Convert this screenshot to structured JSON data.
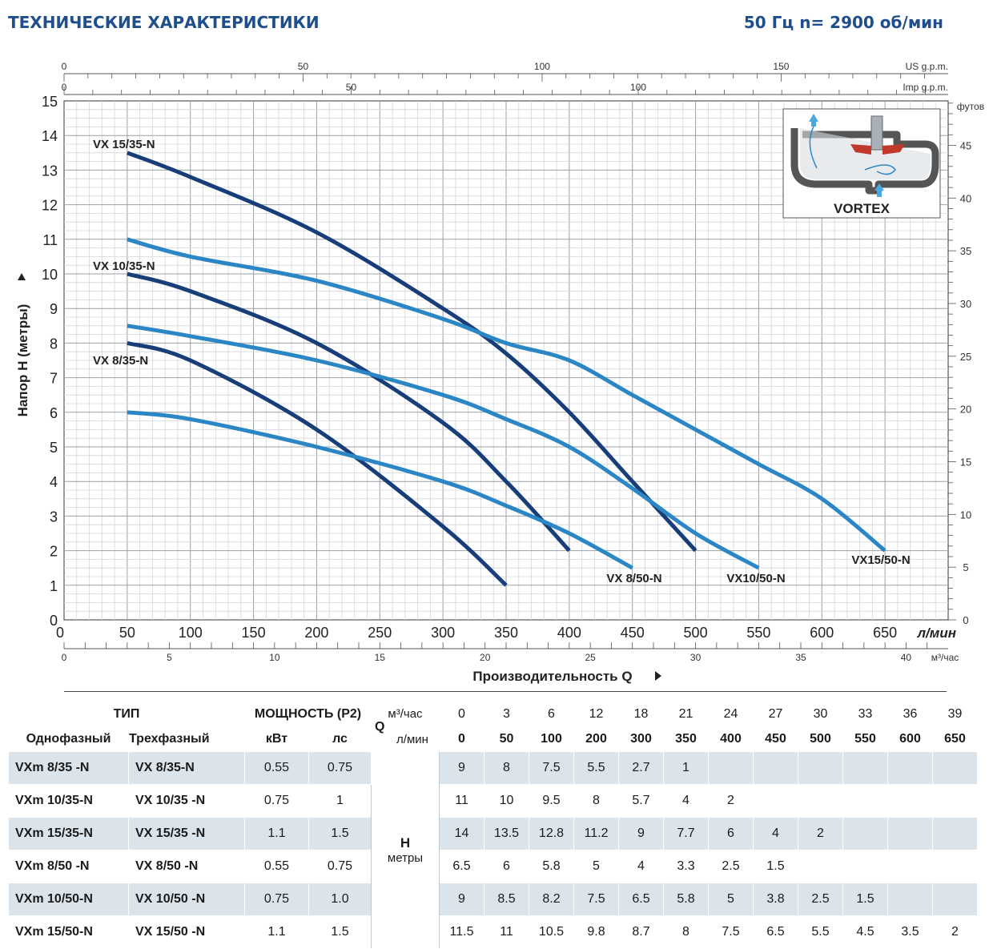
{
  "header": {
    "title": "ТЕХНИЧЕСКИЕ ХАРАКТЕРИСТИКИ",
    "subtitle": "50 Гц  n= 2900 об/мин"
  },
  "chart_data": {
    "type": "line",
    "title": "ТЕХНИЧЕСКИЕ ХАРАКТЕРИСТИКИ",
    "xlabel": "Производительность  Q",
    "ylabel": "Напор  H (метры)",
    "xlim": [
      0,
      700
    ],
    "ylim": [
      0,
      15
    ],
    "grid": true,
    "x_unit_label": "л/мин",
    "x_ticks": [
      "0",
      "50",
      "100",
      "150",
      "200",
      "250",
      "300",
      "350",
      "400",
      "450",
      "500",
      "550",
      "600",
      "650"
    ],
    "y_ticks": [
      "0",
      "1",
      "2",
      "3",
      "4",
      "5",
      "6",
      "7",
      "8",
      "9",
      "10",
      "11",
      "12",
      "13",
      "14",
      "15"
    ],
    "secondary_axes": {
      "us_gpm": {
        "label": "US g.p.m.",
        "ticks": [
          "0",
          "50",
          "100",
          "150"
        ]
      },
      "imp_gpm": {
        "label": "Imp g.p.m.",
        "ticks": [
          "0",
          "50",
          "100"
        ]
      },
      "m3h": {
        "label": "м³/час",
        "ticks": [
          "0",
          "5",
          "10",
          "15",
          "20",
          "25",
          "30",
          "35",
          "40"
        ]
      },
      "feet": {
        "label": "футов",
        "ticks": [
          "0",
          "5",
          "10",
          "15",
          "20",
          "25",
          "30",
          "35",
          "40",
          "45"
        ]
      }
    },
    "series": [
      {
        "name": "VX 15/35-N",
        "label": "VX 15/35-N",
        "color": "#173e78",
        "x": [
          50,
          100,
          200,
          300,
          350,
          400,
          450,
          500
        ],
        "y": [
          13.5,
          12.8,
          11.2,
          9,
          7.7,
          6,
          4,
          2
        ]
      },
      {
        "name": "VX 10/35-N",
        "label": "VX 10/35-N",
        "color": "#173e78",
        "x": [
          50,
          100,
          200,
          300,
          350,
          400
        ],
        "y": [
          10,
          9.5,
          8,
          5.7,
          4,
          2
        ]
      },
      {
        "name": "VX 8/35-N",
        "label": "VX 8/35-N",
        "color": "#173e78",
        "x": [
          50,
          100,
          200,
          300,
          350
        ],
        "y": [
          8,
          7.5,
          5.5,
          2.7,
          1
        ]
      },
      {
        "name": "VX15/50-N",
        "label": "VX15/50-N",
        "color": "#2b86c6",
        "x": [
          50,
          100,
          200,
          300,
          350,
          400,
          450,
          500,
          550,
          600,
          650
        ],
        "y": [
          11,
          10.5,
          9.8,
          8.7,
          8,
          7.5,
          6.5,
          5.5,
          4.5,
          3.5,
          2
        ]
      },
      {
        "name": "VX10/50-N",
        "label": "VX10/50-N",
        "color": "#2b86c6",
        "x": [
          50,
          100,
          200,
          300,
          350,
          400,
          450,
          500,
          550
        ],
        "y": [
          8.5,
          8.2,
          7.5,
          6.5,
          5.8,
          5,
          3.8,
          2.5,
          1.5
        ]
      },
      {
        "name": "VX 8/50-N",
        "label": "VX 8/50-N",
        "color": "#2b86c6",
        "x": [
          50,
          100,
          200,
          300,
          350,
          400,
          450
        ],
        "y": [
          6,
          5.8,
          5,
          4,
          3.3,
          2.5,
          1.5
        ]
      }
    ],
    "inset_label": "VORTEX"
  },
  "table": {
    "type_header": "ТИП",
    "single_phase_header": "Однофазный",
    "three_phase_header": "Трехфазный",
    "power_header": "МОЩНОСТЬ (P2)",
    "kw_header": "кВт",
    "hp_header": "лс",
    "q_label": "Q",
    "m3h_label": "м³/час",
    "lmin_label": "л/мин",
    "h_label": "H",
    "h_unit": "метры",
    "q_m3h": [
      "0",
      "3",
      "6",
      "12",
      "18",
      "21",
      "24",
      "27",
      "30",
      "33",
      "36",
      "39"
    ],
    "q_lmin": [
      "0",
      "50",
      "100",
      "200",
      "300",
      "350",
      "400",
      "450",
      "500",
      "550",
      "600",
      "650"
    ],
    "rows": [
      {
        "single": "VXm  8/35  -N",
        "three": "VX  8/35-N",
        "kw": "0.55",
        "hp": "0.75",
        "h": [
          "9",
          "8",
          "7.5",
          "5.5",
          "2.7",
          "1",
          "",
          "",
          "",
          "",
          "",
          ""
        ]
      },
      {
        "single": "VXm 10/35-N",
        "three": "VX 10/35 -N",
        "kw": "0.75",
        "hp": "1",
        "h": [
          "11",
          "10",
          "9.5",
          "8",
          "5.7",
          "4",
          "2",
          "",
          "",
          "",
          "",
          ""
        ]
      },
      {
        "single": "VXm 15/35-N",
        "three": "VX 15/35 -N",
        "kw": "1.1",
        "hp": "1.5",
        "h": [
          "14",
          "13.5",
          "12.8",
          "11.2",
          "9",
          "7.7",
          "6",
          "4",
          "2",
          "",
          "",
          ""
        ]
      },
      {
        "single": "VXm  8/50  -N",
        "three": "VX  8/50  -N",
        "kw": "0.55",
        "hp": "0.75",
        "h": [
          "6.5",
          "6",
          "5.8",
          "5",
          "4",
          "3.3",
          "2.5",
          "1.5",
          "",
          "",
          "",
          ""
        ]
      },
      {
        "single": "VXm 10/50-N",
        "three": "VX 10/50 -N",
        "kw": "0.75",
        "hp": "1.0",
        "h": [
          "9",
          "8.5",
          "8.2",
          "7.5",
          "6.5",
          "5.8",
          "5",
          "3.8",
          "2.5",
          "1.5",
          "",
          ""
        ]
      },
      {
        "single": "VXm 15/50-N",
        "three": "VX 15/50 -N",
        "kw": "1.1",
        "hp": "1.5",
        "h": [
          "11.5",
          "11",
          "10.5",
          "9.8",
          "8.7",
          "8",
          "7.5",
          "6.5",
          "5.5",
          "4.5",
          "3.5",
          "2"
        ]
      }
    ]
  }
}
